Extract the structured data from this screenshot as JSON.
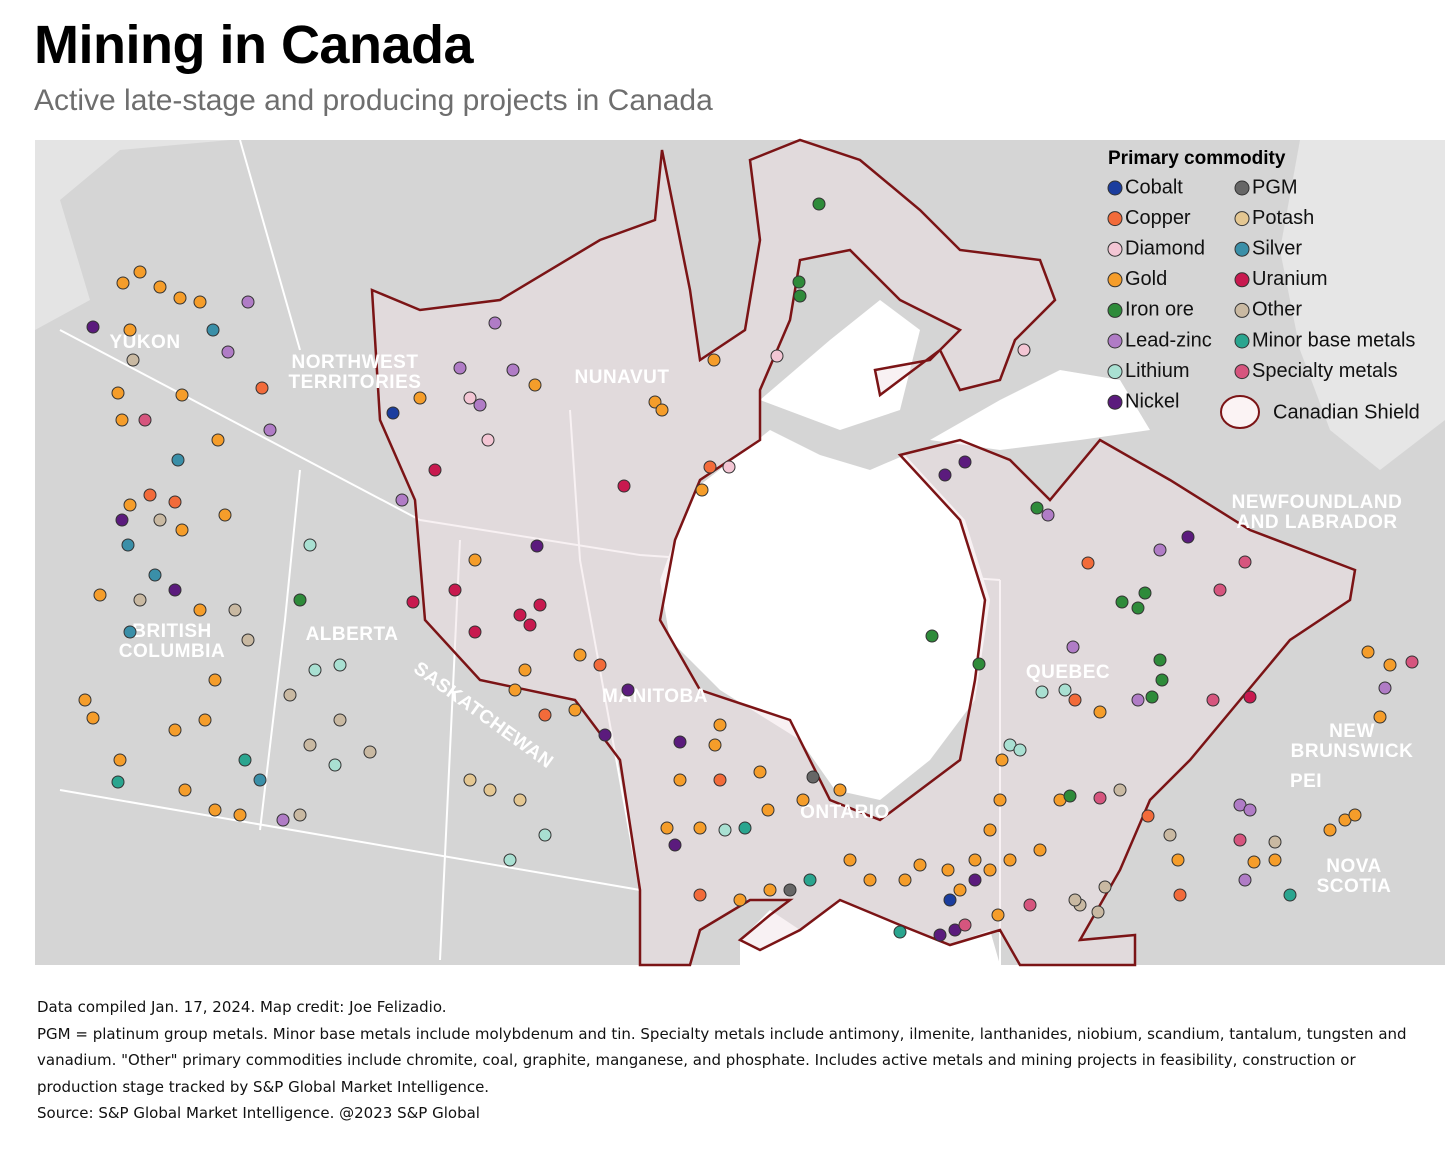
{
  "title": "Mining in Canada",
  "subtitle": "Active late-stage and producing projects in Canada",
  "legend": {
    "title": "Primary commodity",
    "items": [
      {
        "name": "Cobalt",
        "color": "#1b3d9e"
      },
      {
        "name": "Copper",
        "color": "#f26b3a"
      },
      {
        "name": "Diamond",
        "color": "#f3c6d4"
      },
      {
        "name": "Gold",
        "color": "#f59d2a"
      },
      {
        "name": "Iron ore",
        "color": "#2e8b3a"
      },
      {
        "name": "Lead-zinc",
        "color": "#b07cc6"
      },
      {
        "name": "Lithium",
        "color": "#a9e0d2"
      },
      {
        "name": "Nickel",
        "color": "#5b1b7d"
      },
      {
        "name": "PGM",
        "color": "#666666"
      },
      {
        "name": "Potash",
        "color": "#e4c792"
      },
      {
        "name": "Silver",
        "color": "#3a8fa8"
      },
      {
        "name": "Uranium",
        "color": "#c8194f"
      },
      {
        "name": "Other",
        "color": "#c9b9a2"
      },
      {
        "name": "Minor base metals",
        "color": "#2aa58f"
      },
      {
        "name": "Specialty metals",
        "color": "#d6557e"
      }
    ],
    "shield_label": "Canadian Shield"
  },
  "regions": [
    {
      "lines": [
        "YUKON"
      ]
    },
    {
      "lines": [
        "NORTHWEST",
        "TERRITORIES"
      ]
    },
    {
      "lines": [
        "NUNAVUT"
      ]
    },
    {
      "lines": [
        "BRITISH",
        "COLUMBIA"
      ]
    },
    {
      "lines": [
        "ALBERTA"
      ]
    },
    {
      "lines": [
        "SASKATCHEWAN"
      ]
    },
    {
      "lines": [
        "MANITOBA"
      ]
    },
    {
      "lines": [
        "ONTARIO"
      ]
    },
    {
      "lines": [
        "QUEBEC"
      ]
    },
    {
      "lines": [
        "NEWFOUNDLAND",
        "AND LABRADOR"
      ]
    },
    {
      "lines": [
        "NEW",
        "BRUNSWICK"
      ]
    },
    {
      "lines": [
        "PEI"
      ]
    },
    {
      "lines": [
        "NOVA",
        "SCOTIA"
      ]
    }
  ],
  "notes": [
    "Data compiled Jan. 17, 2024. Map credit: Joe Felizadio.",
    "PGM = platinum group metals. Minor base metals include molybdenum and tin. Specialty metals include antimony, ilmenite, lanthanides, niobium, scandium, tantalum, tungsten and vanadium. \"Other\" primary commodities include chromite, coal, graphite, manganese, and phosphate. Includes active metals and mining projects in feasibility, construction or production stage tracked by S&P Global Market Intelligence.",
    "Source: S&P Global Market Intelligence. @2023 S&P Global"
  ]
}
